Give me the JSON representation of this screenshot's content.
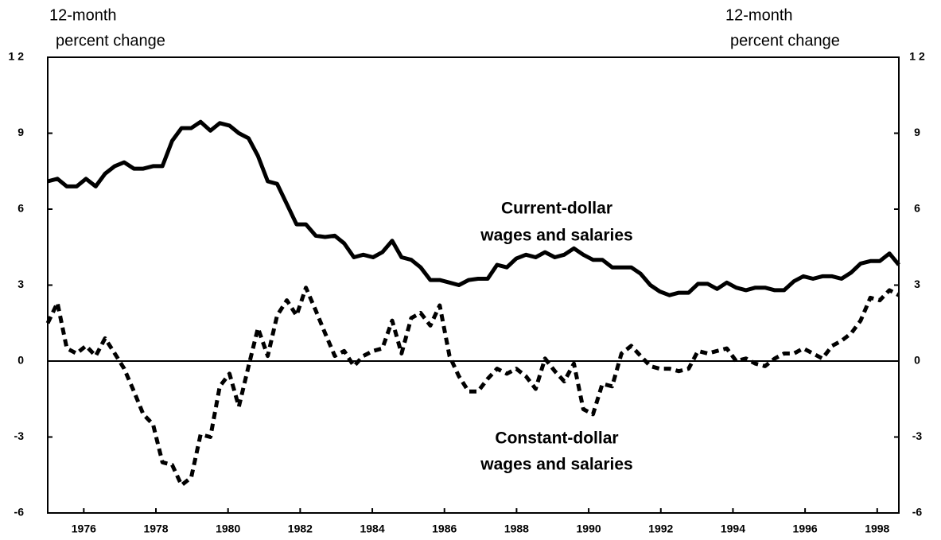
{
  "chart_data": {
    "type": "line",
    "ylabel_lines": [
      "12-month",
      "percent change"
    ],
    "y2label_lines": [
      "12-month",
      "percent change"
    ],
    "annotations": [
      {
        "lines": [
          "Current-dollar",
          "wages and salaries"
        ]
      },
      {
        "lines": [
          "Constant-dollar",
          "wages and salaries"
        ]
      }
    ],
    "xlim": [
      1975.0,
      1998.6
    ],
    "xticks": [
      1976,
      1978,
      1980,
      1982,
      1984,
      1986,
      1988,
      1990,
      1992,
      1994,
      1996,
      1998
    ],
    "ylim": [
      -6,
      12
    ],
    "yticks": [
      -6,
      -3,
      0,
      3,
      6,
      9,
      {
        "value": 12,
        "label": "1 2"
      }
    ],
    "y2lim": [
      -6,
      12
    ],
    "y2ticks": [
      -6,
      -3,
      0,
      3,
      6,
      9,
      {
        "value": 12,
        "label": "1 2"
      }
    ],
    "zero_line": true,
    "x": [
      1975.0,
      1975.27,
      1975.53,
      1975.8,
      1976.06,
      1976.33,
      1976.59,
      1976.86,
      1977.12,
      1977.39,
      1977.65,
      1977.92,
      1978.18,
      1978.45,
      1978.71,
      1978.98,
      1979.24,
      1979.51,
      1979.77,
      1980.04,
      1980.3,
      1980.57,
      1980.83,
      1981.1,
      1981.36,
      1981.63,
      1981.9,
      1982.16,
      1982.43,
      1982.69,
      1982.96,
      1983.22,
      1983.49,
      1983.75,
      1984.02,
      1984.28,
      1984.55,
      1984.81,
      1985.08,
      1985.34,
      1985.61,
      1985.87,
      1986.14,
      1986.4,
      1986.67,
      1986.93,
      1987.2,
      1987.46,
      1987.73,
      1987.99,
      1988.26,
      1988.53,
      1988.79,
      1989.06,
      1989.32,
      1989.59,
      1989.85,
      1990.12,
      1990.38,
      1990.65,
      1990.91,
      1991.18,
      1991.44,
      1991.71,
      1991.97,
      1992.24,
      1992.5,
      1992.77,
      1993.03,
      1993.3,
      1993.56,
      1993.83,
      1994.09,
      1994.36,
      1994.62,
      1994.89,
      1995.16,
      1995.42,
      1995.69,
      1995.95,
      1996.22,
      1996.48,
      1996.75,
      1997.01,
      1997.28,
      1997.54,
      1997.81,
      1998.07,
      1998.34,
      1998.6
    ],
    "series": [
      {
        "name": "Current-dollar wages and salaries",
        "color": "#000000",
        "style": "solid",
        "values": [
          7.1,
          7.2,
          6.9,
          6.9,
          7.2,
          6.9,
          7.4,
          7.7,
          7.85,
          7.6,
          7.6,
          7.7,
          7.7,
          8.7,
          9.2,
          9.2,
          9.45,
          9.1,
          9.4,
          9.3,
          9.0,
          8.8,
          8.1,
          7.1,
          7.0,
          6.2,
          5.4,
          5.4,
          4.95,
          4.9,
          4.95,
          4.65,
          4.1,
          4.2,
          4.1,
          4.3,
          4.75,
          4.1,
          4.0,
          3.7,
          3.2,
          3.2,
          3.1,
          3.0,
          3.2,
          3.25,
          3.25,
          3.8,
          3.7,
          4.05,
          4.2,
          4.1,
          4.3,
          4.1,
          4.2,
          4.45,
          4.2,
          4.0,
          4.0,
          3.7,
          3.7,
          3.7,
          3.45,
          3.0,
          2.75,
          2.6,
          2.7,
          2.7,
          3.05,
          3.05,
          2.85,
          3.1,
          2.9,
          2.8,
          2.9,
          2.9,
          2.8,
          2.8,
          3.15,
          3.35,
          3.25,
          3.35,
          3.35,
          3.25,
          3.5,
          3.85,
          3.95,
          3.95,
          4.25,
          3.8
        ]
      },
      {
        "name": "Constant-dollar wages and salaries",
        "color": "#000000",
        "style": "dashed",
        "values": [
          1.5,
          2.3,
          0.5,
          0.3,
          0.6,
          0.2,
          0.9,
          0.3,
          -0.3,
          -1.2,
          -2.1,
          -2.5,
          -4.0,
          -4.1,
          -4.9,
          -4.6,
          -2.9,
          -3.0,
          -1.0,
          -0.5,
          -1.8,
          -0.2,
          1.3,
          0.2,
          1.8,
          2.4,
          1.8,
          2.9,
          2.0,
          1.1,
          0.2,
          0.4,
          -0.2,
          0.2,
          0.4,
          0.5,
          1.6,
          0.3,
          1.7,
          1.9,
          1.4,
          2.2,
          0.2,
          -0.6,
          -1.2,
          -1.2,
          -0.7,
          -0.3,
          -0.5,
          -0.3,
          -0.6,
          -1.1,
          0.1,
          -0.4,
          -0.8,
          -0.1,
          -1.9,
          -2.1,
          -0.9,
          -1.0,
          0.3,
          0.6,
          0.2,
          -0.2,
          -0.3,
          -0.3,
          -0.4,
          -0.3,
          0.4,
          0.3,
          0.4,
          0.5,
          0.0,
          0.1,
          -0.1,
          -0.2,
          0.1,
          0.3,
          0.3,
          0.5,
          0.3,
          0.1,
          0.6,
          0.8,
          1.1,
          1.6,
          2.5,
          2.4,
          2.8,
          2.6
        ]
      }
    ]
  }
}
